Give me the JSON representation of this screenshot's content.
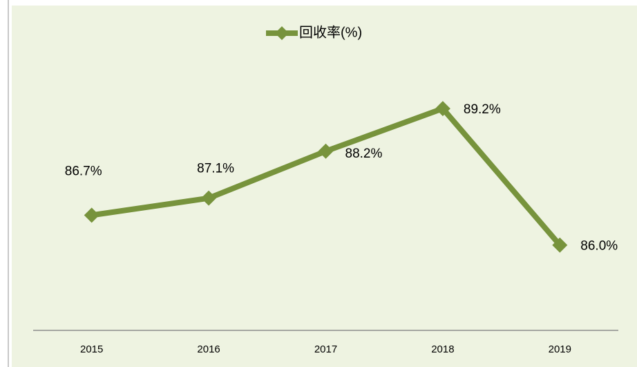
{
  "chart_data": {
    "type": "line",
    "categories": [
      "2015",
      "2016",
      "2017",
      "2018",
      "2019"
    ],
    "series": [
      {
        "name": "回收率(%)",
        "color": "#77933c",
        "values": [
          86.7,
          87.1,
          88.2,
          89.2,
          86.0
        ],
        "value_labels": [
          "86.7%",
          "87.1%",
          "88.2%",
          "89.2%",
          "86.0%"
        ]
      }
    ],
    "ylim": [
      84,
      91
    ],
    "legend": "top"
  }
}
